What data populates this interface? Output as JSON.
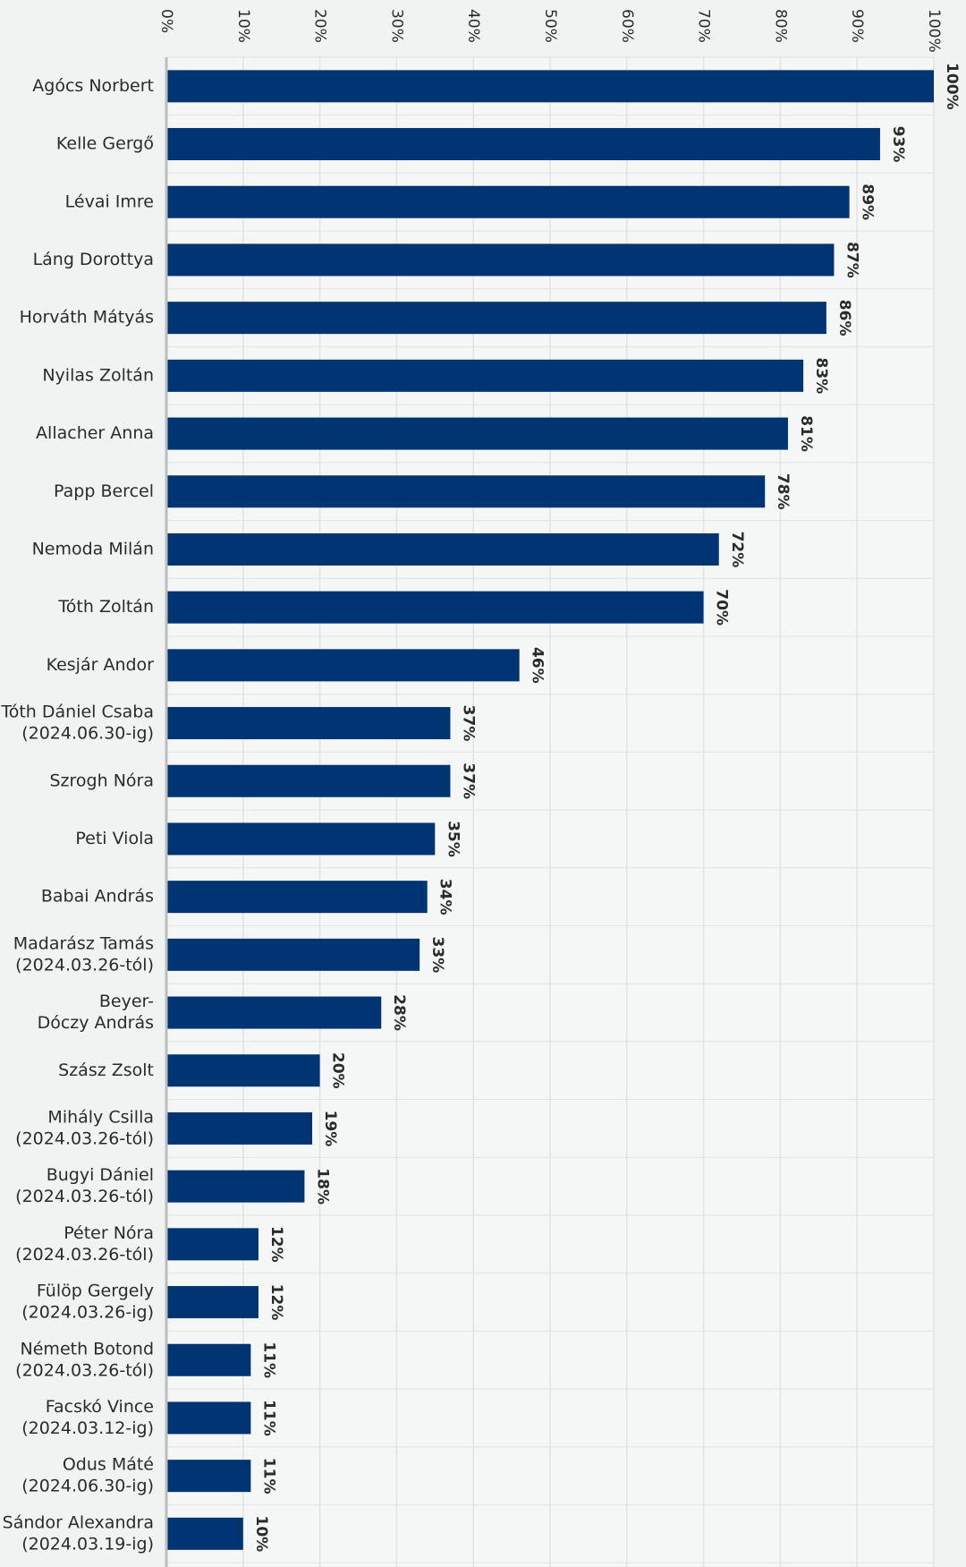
{
  "chart_data": {
    "type": "bar",
    "orientation": "horizontal",
    "xlim": [
      0,
      100
    ],
    "x_ticks": [
      "0%",
      "10%",
      "20%",
      "30%",
      "40%",
      "50%",
      "60%",
      "70%",
      "80%",
      "90%",
      "100%"
    ],
    "grid": true,
    "bar_color": "#003473",
    "categories": [
      [
        "Agócs Norbert"
      ],
      [
        "Kelle Gergő"
      ],
      [
        "Lévai Imre"
      ],
      [
        "Láng Dorottya"
      ],
      [
        "Horváth Mátyás"
      ],
      [
        "Nyilas Zoltán"
      ],
      [
        "Allacher Anna"
      ],
      [
        "Papp Bercel"
      ],
      [
        "Nemoda Milán"
      ],
      [
        "Tóth Zoltán"
      ],
      [
        "Kesjár Andor"
      ],
      [
        "Tóth Dániel Csaba",
        "(2024.06.30-ig)"
      ],
      [
        "Szrogh Nóra"
      ],
      [
        "Peti Viola"
      ],
      [
        "Babai András"
      ],
      [
        "Madarász Tamás",
        "(2024.03.26-tól)"
      ],
      [
        "Beyer-",
        "Dóczy András"
      ],
      [
        "Szász Zsolt"
      ],
      [
        "Mihály Csilla",
        "(2024.03.26-tól)"
      ],
      [
        "Bugyi Dániel",
        "(2024.03.26-tól)"
      ],
      [
        "Péter Nóra",
        "(2024.03.26-tól)"
      ],
      [
        "Fülöp Gergely",
        "(2024.03.26-ig)"
      ],
      [
        "Németh Botond",
        "(2024.03.26-tól)"
      ],
      [
        "Facskó Vince",
        "(2024.03.12-ig)"
      ],
      [
        "Odus Máté",
        "(2024.06.30-ig)"
      ],
      [
        "Sándor Alexandra",
        "(2024.03.19-ig)"
      ]
    ],
    "values": [
      100,
      93,
      89,
      87,
      86,
      83,
      81,
      78,
      72,
      70,
      46,
      37,
      37,
      35,
      34,
      33,
      28,
      20,
      19,
      18,
      12,
      12,
      11,
      11,
      11,
      10
    ],
    "data_labels": [
      "100%",
      "93%",
      "89%",
      "87%",
      "86%",
      "83%",
      "81%",
      "78%",
      "72%",
      "70%",
      "46%",
      "37%",
      "37%",
      "35%",
      "34%",
      "33%",
      "28%",
      "20%",
      "19%",
      "18%",
      "12%",
      "12%",
      "11%",
      "11%",
      "11%",
      "10%"
    ]
  }
}
